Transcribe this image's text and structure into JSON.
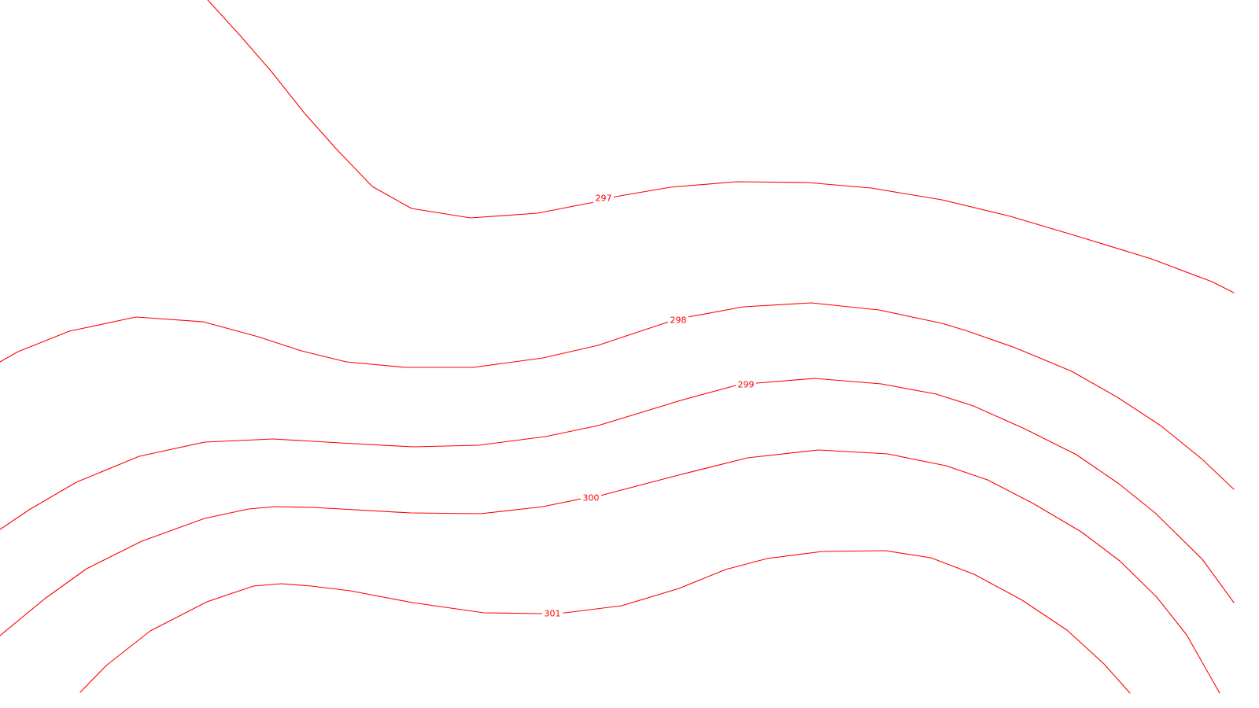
{
  "map": {
    "line_color": "#ff0000",
    "background_color": "#ffffff",
    "contours": [
      {
        "level": "297"
      },
      {
        "level": "298"
      },
      {
        "level": "299"
      },
      {
        "level": "300"
      },
      {
        "level": "301"
      }
    ]
  }
}
